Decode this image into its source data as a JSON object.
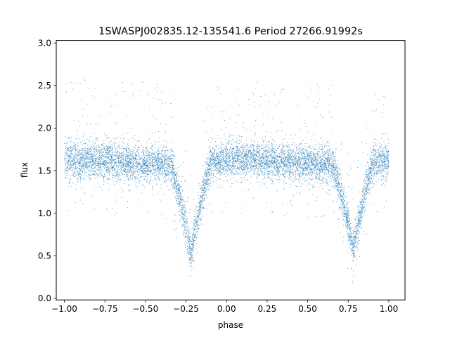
{
  "chart_data": {
    "type": "scatter",
    "title": "1SWASPJ002835.12-135541.6 Period 27266.91992s",
    "xlabel": "phase",
    "ylabel": "flux",
    "xlim": [
      -1.05,
      1.1
    ],
    "ylim": [
      -0.02,
      3.03
    ],
    "xticks": [
      -1.0,
      -0.75,
      -0.5,
      -0.25,
      0.0,
      0.25,
      0.5,
      0.75,
      1.0
    ],
    "xtick_labels": [
      "−1.00",
      "−0.75",
      "−0.50",
      "−0.25",
      "0.00",
      "0.25",
      "0.50",
      "0.75",
      "1.00"
    ],
    "yticks": [
      0.0,
      0.5,
      1.0,
      1.5,
      2.0,
      2.5,
      3.0
    ],
    "ytick_labels": [
      "0.0",
      "0.5",
      "1.0",
      "1.5",
      "2.0",
      "2.5",
      "3.0"
    ],
    "grid": false,
    "legend": "none",
    "marker_color": "#1f77b4",
    "baseline_flux": 1.6,
    "eclipses": [
      {
        "phase": -0.22,
        "min_flux": 0.55
      },
      {
        "phase": 0.78,
        "min_flux": 0.6
      }
    ],
    "series": [
      {
        "x": [
          -1.0,
          -0.9,
          -0.8,
          -0.7,
          -0.6,
          -0.5,
          -0.4,
          -0.35,
          -0.3,
          -0.25,
          -0.22,
          -0.19,
          -0.15,
          -0.1,
          -0.05,
          0.0,
          0.1,
          0.2,
          0.3,
          0.4,
          0.5,
          0.6,
          0.65,
          0.7,
          0.75,
          0.78,
          0.81,
          0.85,
          0.9,
          0.95,
          1.0
        ],
        "y": [
          1.6,
          1.6,
          1.62,
          1.62,
          1.6,
          1.58,
          1.55,
          1.45,
          1.2,
          0.8,
          0.55,
          0.8,
          1.25,
          1.5,
          1.58,
          1.6,
          1.62,
          1.62,
          1.6,
          1.6,
          1.6,
          1.55,
          1.48,
          1.25,
          0.8,
          0.6,
          0.8,
          1.2,
          1.45,
          1.55,
          1.6
        ]
      }
    ]
  }
}
